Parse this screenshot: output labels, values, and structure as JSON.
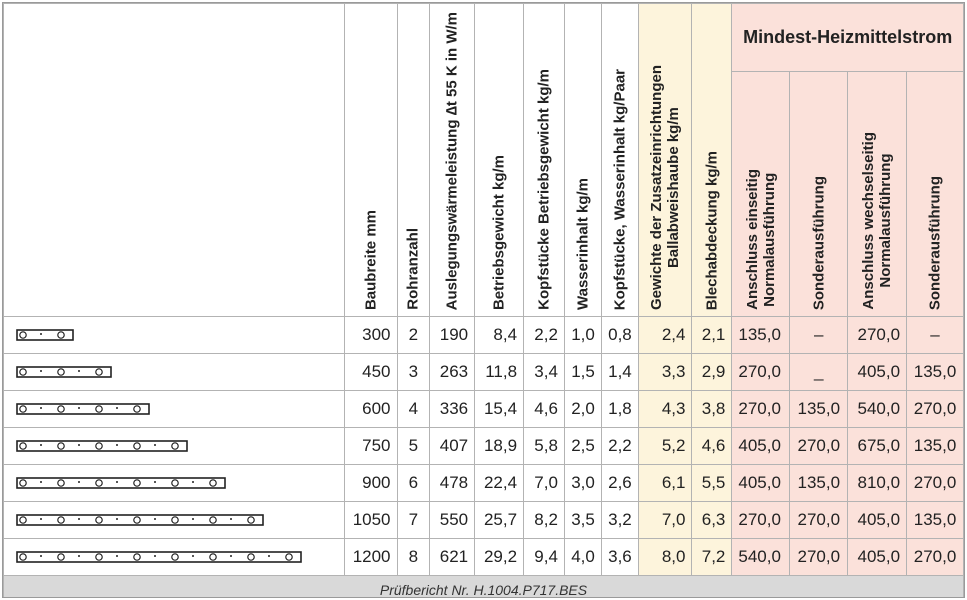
{
  "headers": {
    "baubreite": "Baubreite mm",
    "rohranzahl": "Rohranzahl",
    "leistung": "Auslegungswärmeleistung ∆t 55 K in W/m",
    "betriebsgewicht": "Betriebsgewicht kg/m",
    "kopf_gewicht": "Kopfstücke Betriebsgewicht kg/m",
    "wasserinhalt": "Wasserinhalt kg/m",
    "kopf_wasser": "Kopfstücke, Wasserinhalt kg/Paar",
    "zusatz_title": "Gewichte der Zusatzeinrichtungen",
    "zusatz_sub": "Ballabweishaube kg/m",
    "blech": "Blechabdeckung kg/m",
    "mindest": "Mindest-Heizmittelstrom",
    "einseitig_title": "Anschluss einseitig",
    "einseitig_sub": "Normalausführung",
    "sonder1": "Sonderausführung",
    "wechsel_title": "Anschluss wechselseitig",
    "wechsel_sub": "Normalausführung",
    "sonder2": "Sonderausführung"
  },
  "rows": [
    {
      "pipes": 2,
      "cells": [
        "300",
        "2",
        "190",
        "8,4",
        "2,2",
        "1,0",
        "0,8",
        "2,4",
        "2,1",
        "135,0",
        "–",
        "270,0",
        "–"
      ]
    },
    {
      "pipes": 3,
      "cells": [
        "450",
        "3",
        "263",
        "11,8",
        "3,4",
        "1,5",
        "1,4",
        "3,3",
        "2,9",
        "270,0",
        "_",
        "405,0",
        "135,0"
      ]
    },
    {
      "pipes": 4,
      "cells": [
        "600",
        "4",
        "336",
        "15,4",
        "4,6",
        "2,0",
        "1,8",
        "4,3",
        "3,8",
        "270,0",
        "135,0",
        "540,0",
        "270,0"
      ]
    },
    {
      "pipes": 5,
      "cells": [
        "750",
        "5",
        "407",
        "18,9",
        "5,8",
        "2,5",
        "2,2",
        "5,2",
        "4,6",
        "405,0",
        "270,0",
        "675,0",
        "135,0"
      ]
    },
    {
      "pipes": 6,
      "cells": [
        "900",
        "6",
        "478",
        "22,4",
        "7,0",
        "3,0",
        "2,6",
        "6,1",
        "5,5",
        "405,0",
        "135,0",
        "810,0",
        "270,0"
      ]
    },
    {
      "pipes": 7,
      "cells": [
        "1050",
        "7",
        "550",
        "25,7",
        "8,2",
        "3,5",
        "3,2",
        "7,0",
        "6,3",
        "270,0",
        "270,0",
        "405,0",
        "135,0"
      ]
    },
    {
      "pipes": 8,
      "cells": [
        "1200",
        "8",
        "621",
        "29,2",
        "9,4",
        "4,0",
        "3,6",
        "8,0",
        "7,2",
        "540,0",
        "270,0",
        "405,0",
        "270,0"
      ]
    }
  ],
  "footer": "Prüfbericht Nr. H.1004.P717.BES",
  "colors": {
    "yellow": "#fdf4dc",
    "pink": "#fbe1da",
    "footer": "#d9d9d9"
  }
}
